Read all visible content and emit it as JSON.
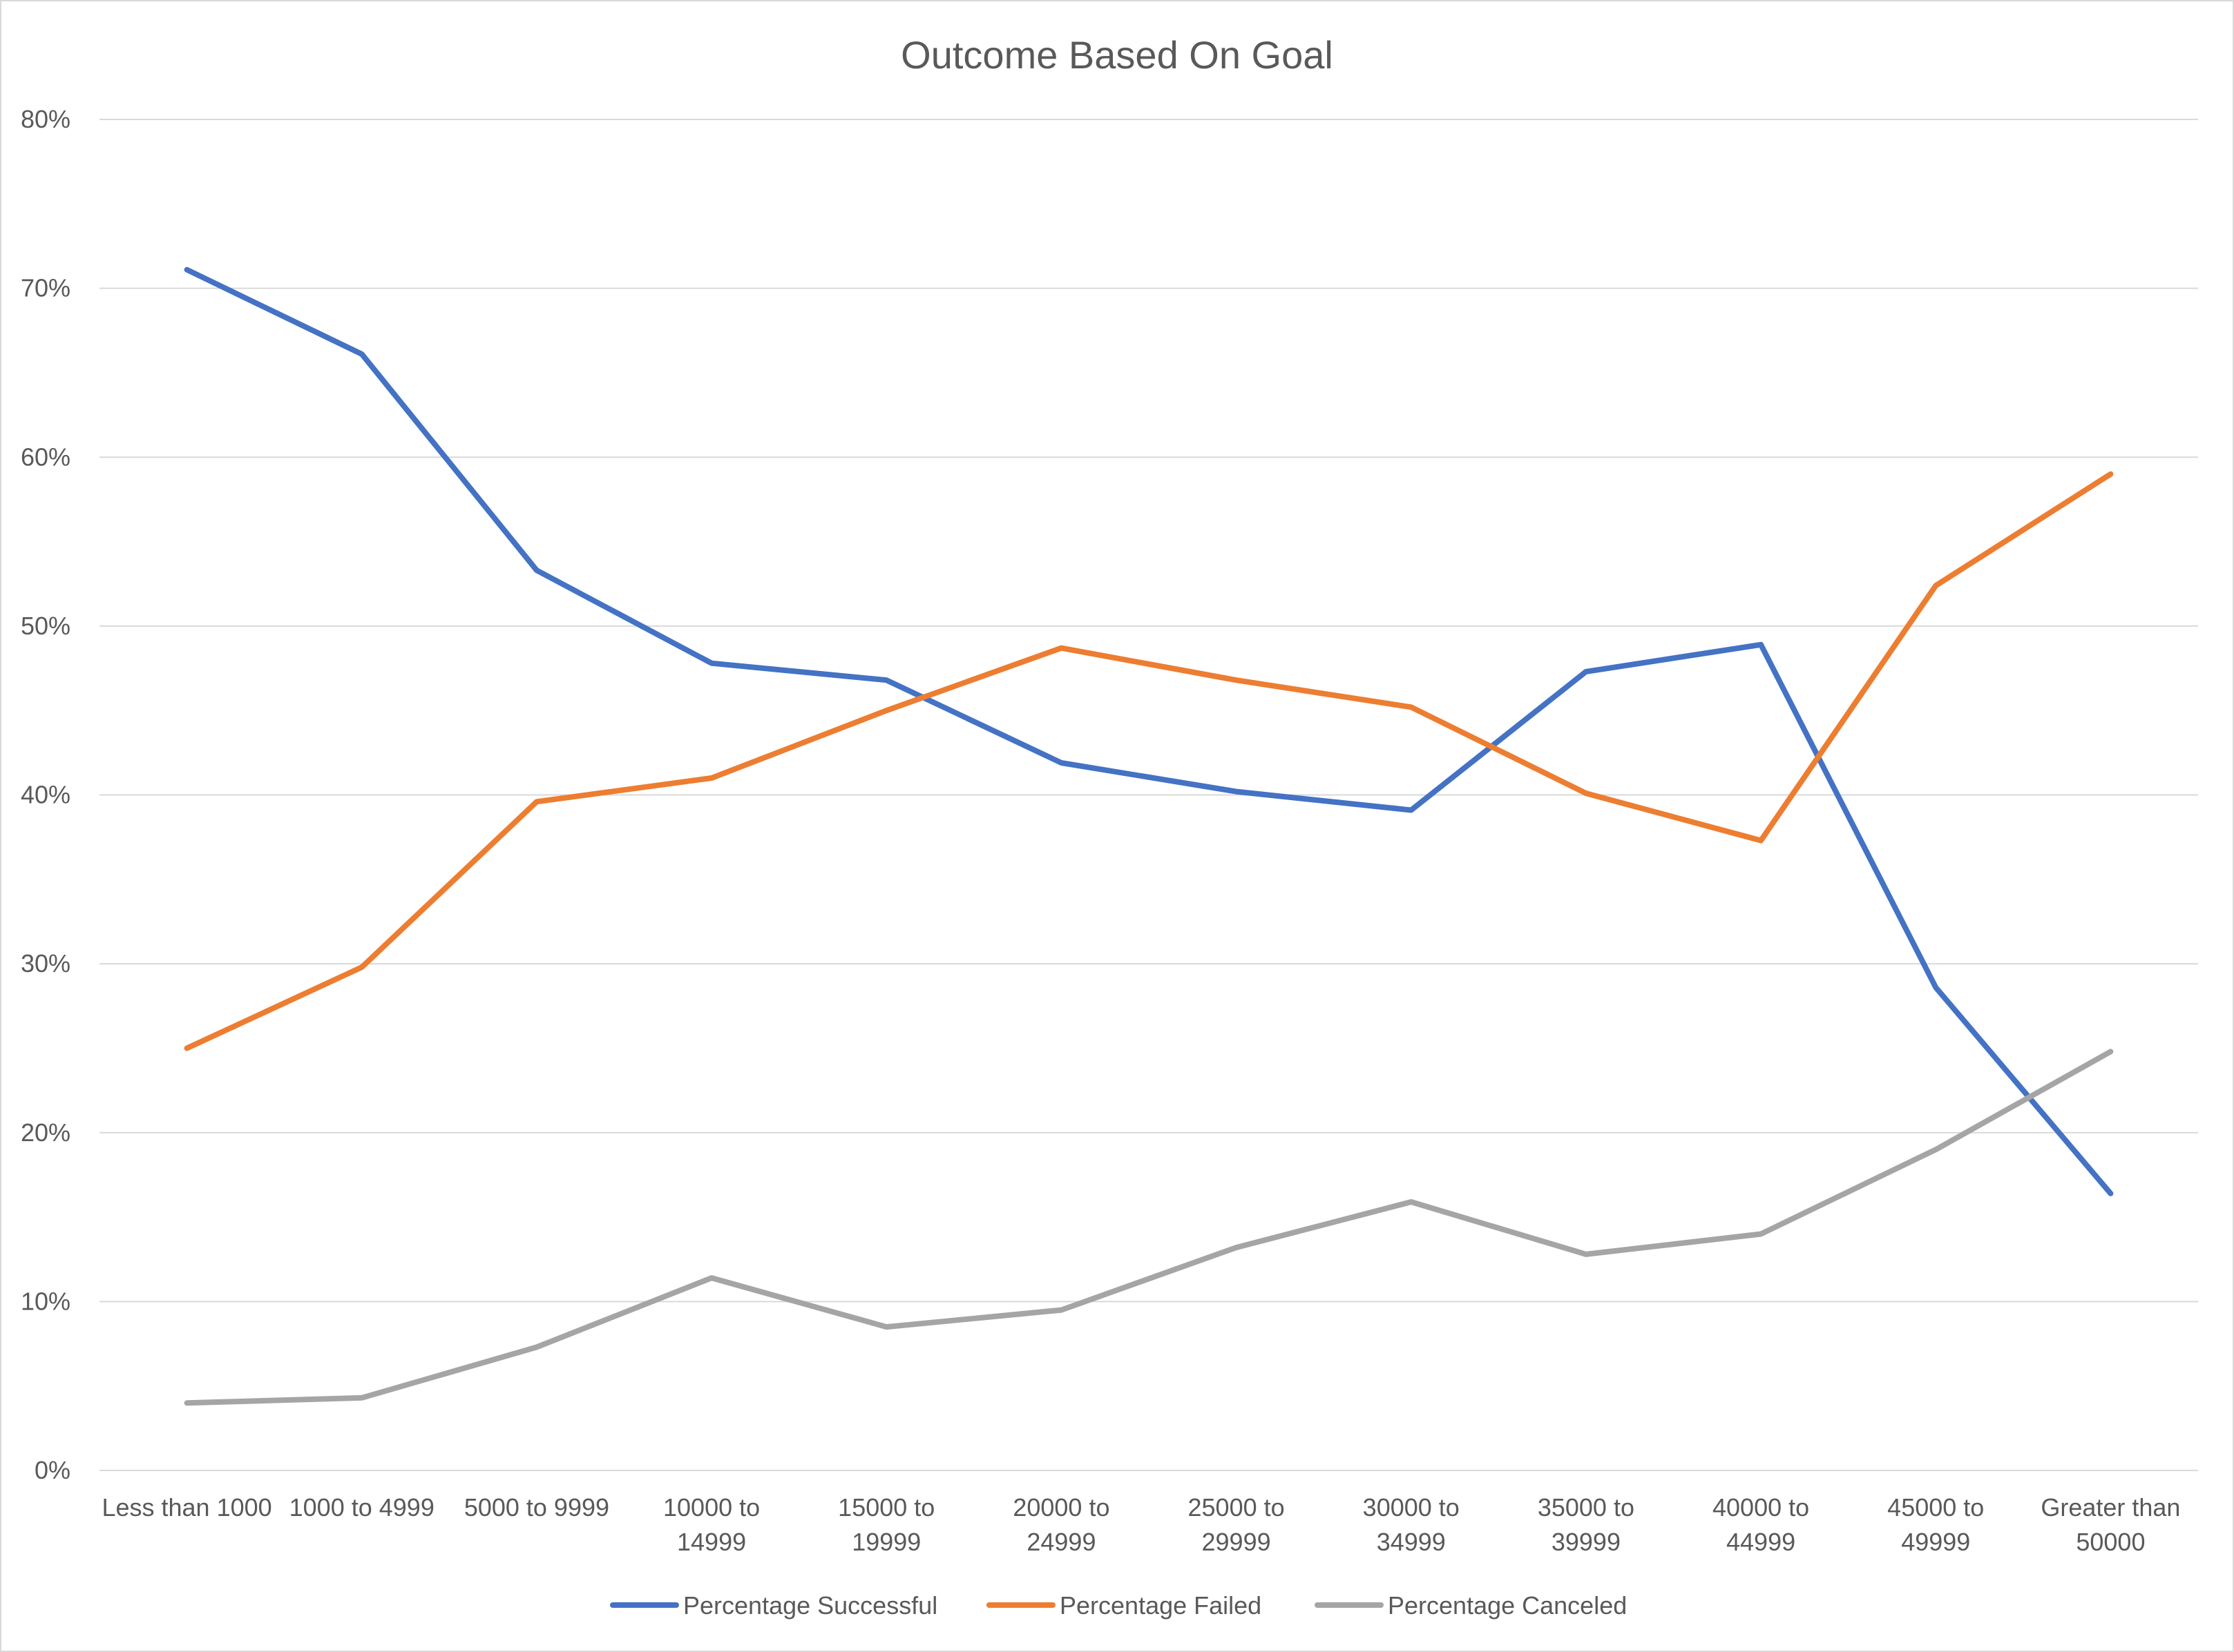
{
  "chart_data": {
    "type": "line",
    "title": "Outcome Based On Goal",
    "xlabel": "",
    "ylabel": "",
    "ylim": [
      0,
      0.8
    ],
    "y_ticks": [
      0,
      0.1,
      0.2,
      0.3,
      0.4,
      0.5,
      0.6,
      0.7,
      0.8
    ],
    "y_tick_labels": [
      "0%",
      "10%",
      "20%",
      "30%",
      "40%",
      "50%",
      "60%",
      "70%",
      "80%"
    ],
    "grid": true,
    "legend_position": "bottom",
    "categories": [
      [
        "Less than 1000"
      ],
      [
        "1000 to 4999"
      ],
      [
        "5000 to 9999"
      ],
      [
        "10000 to",
        "14999"
      ],
      [
        "15000 to",
        "19999"
      ],
      [
        "20000 to",
        "24999"
      ],
      [
        "25000 to",
        "29999"
      ],
      [
        "30000 to",
        "34999"
      ],
      [
        "35000 to",
        "39999"
      ],
      [
        "40000 to",
        "44999"
      ],
      [
        "45000 to",
        "49999"
      ],
      [
        "Greater than",
        "50000"
      ]
    ],
    "series": [
      {
        "name": "Percentage Successful",
        "color": "#4472c4",
        "values": [
          0.711,
          0.661,
          0.533,
          0.478,
          0.468,
          0.419,
          0.402,
          0.391,
          0.473,
          0.489,
          0.286,
          0.164
        ]
      },
      {
        "name": "Percentage Failed",
        "color": "#ed7d31",
        "values": [
          0.25,
          0.298,
          0.396,
          0.41,
          0.45,
          0.487,
          0.468,
          0.452,
          0.401,
          0.373,
          0.524,
          0.59
        ]
      },
      {
        "name": "Percentage Canceled",
        "color": "#a5a5a5",
        "values": [
          0.04,
          0.043,
          0.073,
          0.114,
          0.085,
          0.095,
          0.132,
          0.159,
          0.128,
          0.14,
          0.19,
          0.248
        ]
      }
    ]
  }
}
